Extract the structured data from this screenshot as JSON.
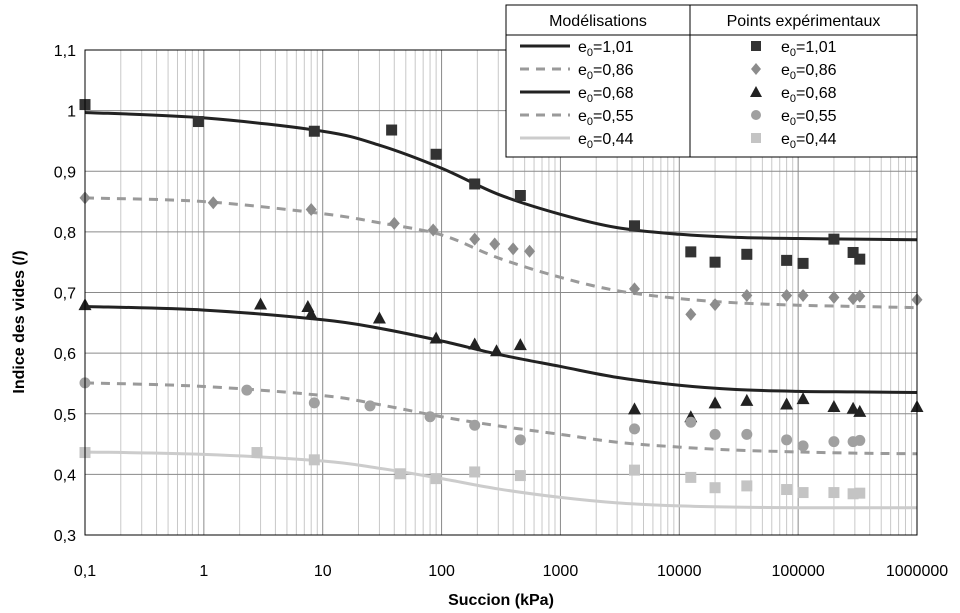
{
  "chart_data": {
    "type": "scatter",
    "xscale": "log",
    "xlim": [
      0.1,
      1000000
    ],
    "ylim": [
      0.3,
      1.1
    ],
    "grid": true,
    "xlabel": "Succion (kPa)",
    "ylabel": "Indice des vides (/)",
    "x_ticks": [
      "0,1",
      "1",
      "10",
      "100",
      "1000",
      "10000",
      "100000",
      "1000000"
    ],
    "y_ticks": [
      "0,3",
      "0,4",
      "0,5",
      "0,6",
      "0,7",
      "0,8",
      "0,9",
      "1",
      "1,1"
    ],
    "legend": {
      "placement": "top-right",
      "model_header": "Modélisations",
      "points_header": "Points expérimentaux"
    },
    "models": [
      {
        "name": "e0=1,01",
        "label_base": "e",
        "label_sub": "0",
        "label_rest": "=1,01",
        "color": "#222222",
        "dash": "solid",
        "x": [
          0.1,
          1,
          10,
          30,
          100,
          300,
          1000,
          3000,
          10000,
          30000,
          100000,
          300000,
          1000000
        ],
        "y": [
          0.997,
          0.988,
          0.966,
          0.943,
          0.905,
          0.862,
          0.829,
          0.807,
          0.796,
          0.791,
          0.789,
          0.788,
          0.787
        ]
      },
      {
        "name": "e0=0,86",
        "label_base": "e",
        "label_sub": "0",
        "label_rest": "=0,86",
        "color": "#9a9a9a",
        "dash": "dashed",
        "x": [
          0.1,
          1,
          10,
          30,
          100,
          300,
          1000,
          3000,
          10000,
          30000,
          100000,
          300000,
          1000000
        ],
        "y": [
          0.856,
          0.85,
          0.83,
          0.815,
          0.795,
          0.757,
          0.725,
          0.703,
          0.69,
          0.683,
          0.679,
          0.677,
          0.675
        ]
      },
      {
        "name": "e0=0,68",
        "label_base": "e",
        "label_sub": "0",
        "label_rest": "=0,68",
        "color": "#222222",
        "dash": "solid",
        "x": [
          0.1,
          1,
          10,
          30,
          100,
          300,
          1000,
          3000,
          10000,
          30000,
          100000,
          300000,
          1000000
        ],
        "y": [
          0.677,
          0.671,
          0.655,
          0.641,
          0.62,
          0.598,
          0.578,
          0.56,
          0.547,
          0.54,
          0.537,
          0.536,
          0.535
        ]
      },
      {
        "name": "e0=0,55",
        "label_base": "e",
        "label_sub": "0",
        "label_rest": "=0,55",
        "color": "#9a9a9a",
        "dash": "dashed",
        "x": [
          0.1,
          1,
          10,
          30,
          100,
          300,
          1000,
          3000,
          10000,
          30000,
          100000,
          300000,
          1000000
        ],
        "y": [
          0.551,
          0.545,
          0.53,
          0.515,
          0.495,
          0.48,
          0.466,
          0.453,
          0.445,
          0.44,
          0.437,
          0.435,
          0.434
        ]
      },
      {
        "name": "e0=0,44",
        "label_base": "e",
        "label_sub": "0",
        "label_rest": "=0,44",
        "color": "#cccccc",
        "dash": "solid",
        "x": [
          0.1,
          1,
          10,
          30,
          100,
          300,
          1000,
          3000,
          10000,
          30000,
          100000,
          300000,
          1000000
        ],
        "y": [
          0.437,
          0.433,
          0.422,
          0.41,
          0.393,
          0.376,
          0.362,
          0.353,
          0.348,
          0.346,
          0.345,
          0.345,
          0.345
        ]
      }
    ],
    "points": [
      {
        "name": "e0=1,01",
        "label_base": "e",
        "label_sub": "0",
        "label_rest": "=1,01",
        "color": "#333333",
        "marker": "square",
        "x": [
          0.1,
          0.9,
          8.5,
          38,
          90,
          190,
          460,
          4200,
          12500,
          20000,
          37000,
          80000,
          110000,
          200000,
          290000,
          330000
        ],
        "y": [
          1.01,
          0.982,
          0.966,
          0.968,
          0.928,
          0.879,
          0.86,
          0.81,
          0.767,
          0.75,
          0.763,
          0.753,
          0.748,
          0.788,
          0.766,
          0.755
        ]
      },
      {
        "name": "e0=0,86",
        "label_base": "e",
        "label_sub": "0",
        "label_rest": "=0,86",
        "color": "#8c8c8c",
        "marker": "diamond",
        "x": [
          0.1,
          1.2,
          8,
          40,
          85,
          190,
          280,
          400,
          550,
          4200,
          12500,
          20000,
          37000,
          80000,
          110000,
          200000,
          290000,
          330000,
          1000000
        ],
        "y": [
          0.856,
          0.848,
          0.837,
          0.814,
          0.803,
          0.788,
          0.78,
          0.772,
          0.768,
          0.706,
          0.664,
          0.68,
          0.695,
          0.695,
          0.695,
          0.692,
          0.69,
          0.694,
          0.688
        ]
      },
      {
        "name": "e0=0,68",
        "label_base": "e",
        "label_sub": "0",
        "label_rest": "=0,68",
        "color": "#222222",
        "marker": "triangle",
        "x": [
          0.1,
          3,
          7.5,
          8,
          30,
          90,
          190,
          290,
          460,
          4200,
          12500,
          20000,
          37000,
          80000,
          110000,
          200000,
          290000,
          330000,
          1000000
        ],
        "y": [
          0.68,
          0.681,
          0.677,
          0.665,
          0.658,
          0.625,
          0.615,
          0.604,
          0.614,
          0.508,
          0.495,
          0.518,
          0.522,
          0.516,
          0.525,
          0.512,
          0.509,
          0.504,
          0.512
        ]
      },
      {
        "name": "e0=0,55",
        "label_base": "e",
        "label_sub": "0",
        "label_rest": "=0,55",
        "color": "#a0a0a0",
        "marker": "circle",
        "x": [
          0.1,
          2.3,
          8.5,
          25,
          80,
          190,
          460,
          4200,
          12500,
          20000,
          37000,
          80000,
          110000,
          200000,
          290000,
          330000
        ],
        "y": [
          0.551,
          0.539,
          0.518,
          0.513,
          0.495,
          0.481,
          0.457,
          0.475,
          0.486,
          0.466,
          0.466,
          0.457,
          0.447,
          0.454,
          0.454,
          0.456
        ]
      },
      {
        "name": "e0=0,44",
        "label_base": "e",
        "label_sub": "0",
        "label_rest": "=0,44",
        "color": "#c4c4c4",
        "marker": "square",
        "x": [
          0.1,
          2.8,
          8.5,
          45,
          90,
          190,
          460,
          4200,
          12500,
          20000,
          37000,
          80000,
          110000,
          200000,
          290000,
          330000
        ],
        "y": [
          0.436,
          0.436,
          0.424,
          0.401,
          0.393,
          0.404,
          0.398,
          0.407,
          0.395,
          0.378,
          0.381,
          0.375,
          0.37,
          0.37,
          0.368,
          0.369
        ]
      }
    ]
  }
}
